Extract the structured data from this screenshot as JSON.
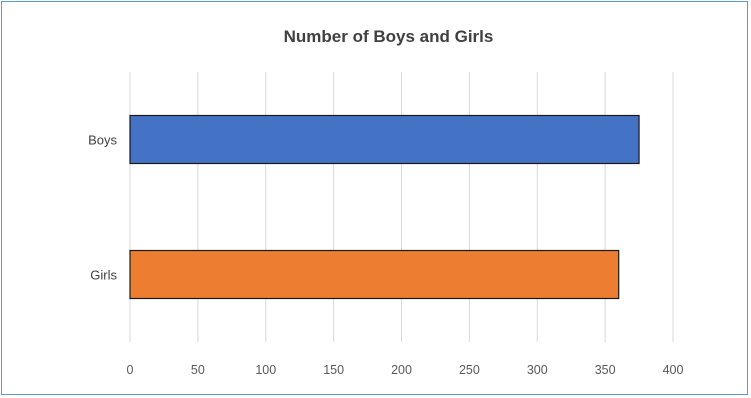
{
  "chart_data": {
    "type": "bar",
    "orientation": "horizontal",
    "title": "Number of Boys and Girls",
    "xlabel": "",
    "ylabel": "",
    "categories": [
      "Boys",
      "Girls"
    ],
    "values": [
      375,
      360
    ],
    "colors": [
      "#4472c4",
      "#ed7d31"
    ],
    "xlim": [
      0,
      400
    ],
    "x_ticks": [
      0,
      50,
      100,
      150,
      200,
      250,
      300,
      350,
      400
    ],
    "grid": "vertical",
    "legend": "none"
  }
}
